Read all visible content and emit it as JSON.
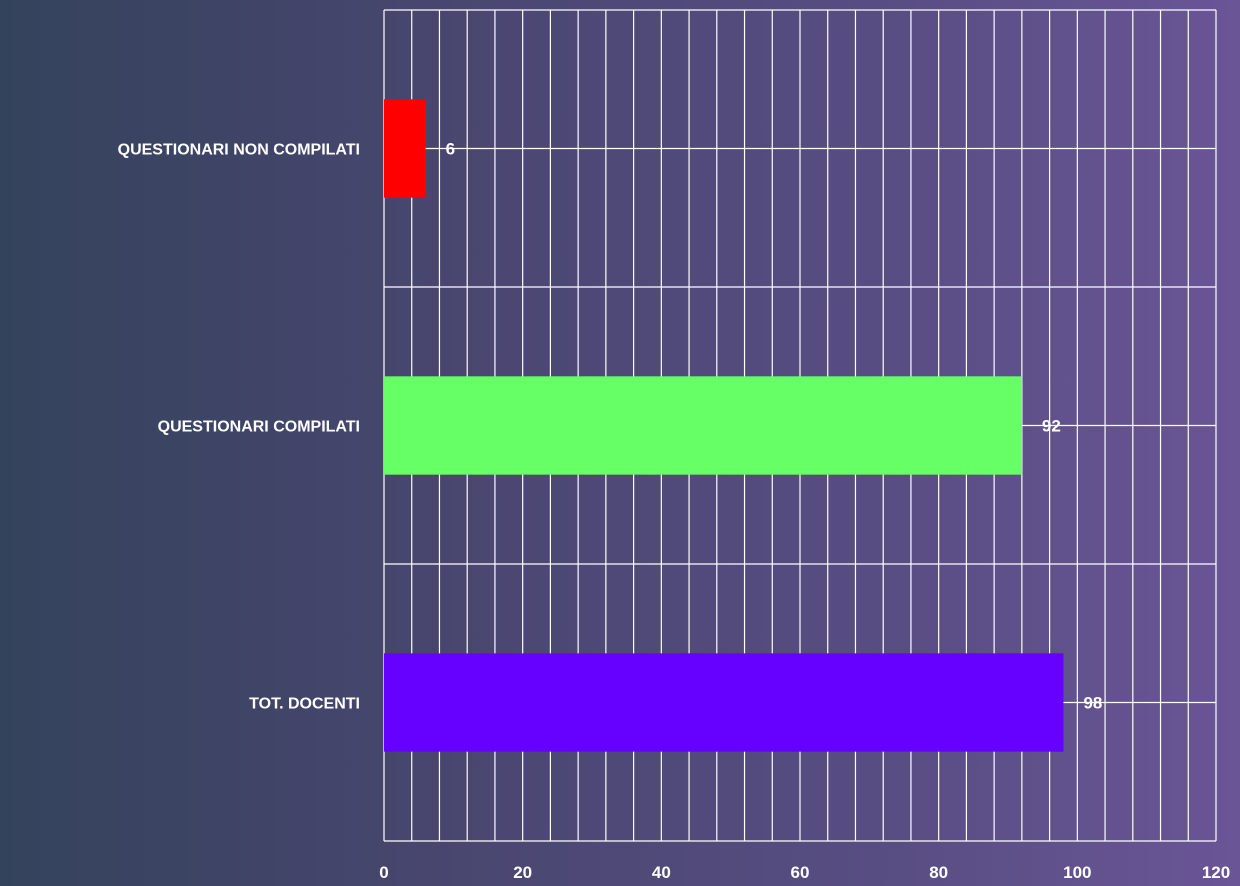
{
  "chart_data": {
    "type": "bar",
    "orientation": "horizontal",
    "categories": [
      "QUESTIONARI NON COMPILATI",
      "QUESTIONARI COMPILATI",
      "TOT. DOCENTI"
    ],
    "values": [
      6,
      92,
      98
    ],
    "bar_colors": [
      "#ff0000",
      "#66ff66",
      "#6600ff"
    ],
    "data_labels": [
      "6",
      "92",
      "98"
    ],
    "title": "",
    "xlabel": "",
    "ylabel": "",
    "xlim": [
      0,
      120
    ],
    "x_ticks": [
      "0",
      "20",
      "40",
      "60",
      "80",
      "100",
      "120"
    ],
    "grid": true,
    "legend": "none"
  }
}
